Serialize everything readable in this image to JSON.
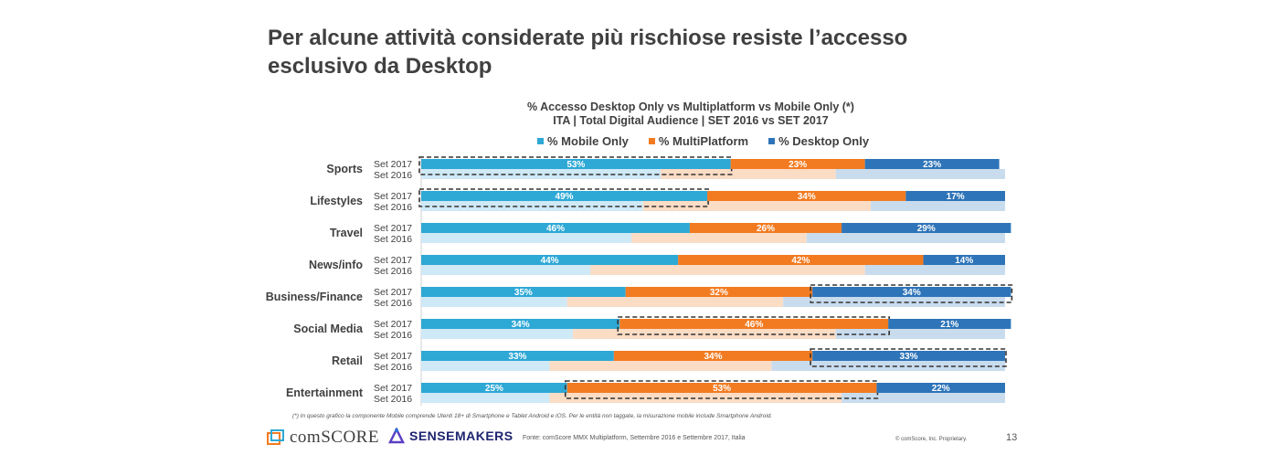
{
  "slide": {
    "title": "Per alcune attività considerate più rischiose resiste l’accesso esclusivo da Desktop",
    "title_line1": "Per alcune attività considerate più rischiose resiste l’accesso",
    "title_line2": "esclusivo da Desktop",
    "footnote": "(*) In questo grafico la componente Mobile comprende Utenti 18+ di Smartphone e Tablet Android e iOS. Per le entità non taggate, la misurazione mobile include Smartphone Android.",
    "logos": [
      "comScore",
      "Sensemakers"
    ],
    "logo_comscore": "comSCORE",
    "logo_sensemakers": "SENSEMAKERS",
    "source": "Fonte: comScore MMX Multiplatform, Settembre 2016 e Settembre 2017, Italia",
    "copyright": "© comScore, Inc. Proprietary.",
    "page_number": "13"
  },
  "colors": {
    "mobile_2017": "#2ea8d5",
    "multi_2017": "#f27b21",
    "desktop_2017": "#2e74b8",
    "mobile_2016": "#cfe9f6",
    "multi_2016": "#fbdcc5",
    "desktop_2016": "#c9dcee",
    "highlight_border": "#333333"
  },
  "chart_data": {
    "type": "bar",
    "orientation": "horizontal-stacked-100",
    "title": "% Accesso Desktop Only vs Multiplatform vs Mobile Only (*)",
    "subtitle": "ITA | Total Digital Audience | SET 2016 vs SET 2017",
    "legend": [
      "% Mobile Only",
      "% MultiPlatform",
      "% Desktop Only"
    ],
    "legend_position": "top",
    "xlim": [
      0,
      100
    ],
    "period_labels": [
      "Set 2017",
      "Set 2016"
    ],
    "categories": [
      "Sports",
      "Lifestyles",
      "Travel",
      "News/info",
      "Business/Finance",
      "Social Media",
      "Retail",
      "Entertainment"
    ],
    "series_2017": [
      {
        "name": "% Mobile Only",
        "values": [
          53,
          49,
          46,
          44,
          35,
          34,
          33,
          25
        ]
      },
      {
        "name": "% MultiPlatform",
        "values": [
          23,
          34,
          26,
          42,
          32,
          46,
          34,
          53
        ]
      },
      {
        "name": "% Desktop Only",
        "values": [
          23,
          17,
          29,
          14,
          34,
          21,
          33,
          22
        ]
      }
    ],
    "series_2016_estimated": [
      {
        "name": "% Mobile Only",
        "values": [
          41,
          38,
          36,
          29,
          25,
          26,
          22,
          22
        ]
      },
      {
        "name": "% MultiPlatform",
        "values": [
          30,
          39,
          30,
          47,
          37,
          45,
          38,
          50
        ]
      },
      {
        "name": "% Desktop Only",
        "values": [
          29,
          23,
          34,
          24,
          38,
          29,
          40,
          28
        ]
      }
    ],
    "highlighted": [
      {
        "category": "Sports",
        "series": "% Mobile Only"
      },
      {
        "category": "Lifestyles",
        "series": "% Mobile Only"
      },
      {
        "category": "Business/Finance",
        "series": "% Desktop Only"
      },
      {
        "category": "Social Media",
        "series": "% MultiPlatform"
      },
      {
        "category": "Retail",
        "series": "% Desktop Only"
      },
      {
        "category": "Entertainment",
        "series": "% MultiPlatform"
      }
    ],
    "data_labels_2017": true
  }
}
